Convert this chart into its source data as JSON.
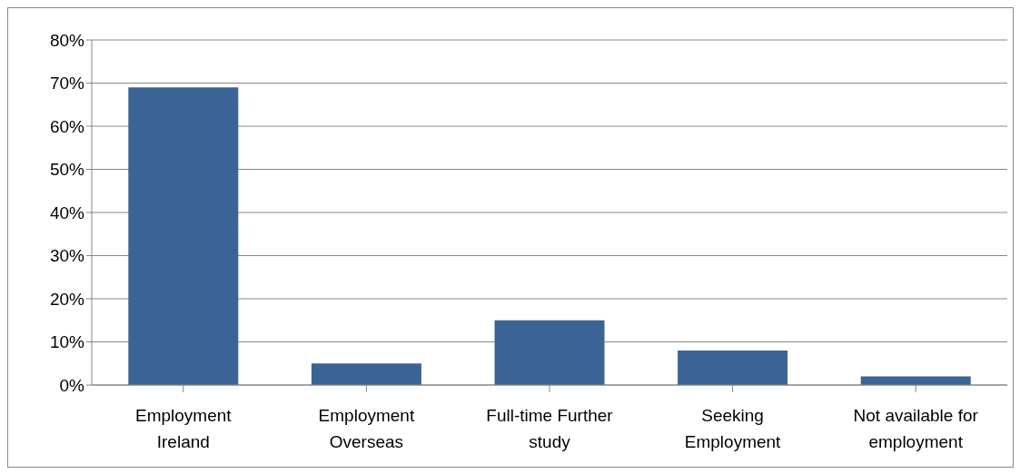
{
  "chart_data": {
    "type": "bar",
    "categories": [
      "Employment Ireland",
      "Employment Overseas",
      "Full-time Further study",
      "Seeking Employment",
      "Not available for employment"
    ],
    "values": [
      69,
      5,
      15,
      8,
      2
    ],
    "color": "#3a6495",
    "ylim": [
      0,
      80
    ],
    "yticks": [
      {
        "value": 0,
        "label": "0%"
      },
      {
        "value": 10,
        "label": "10%"
      },
      {
        "value": 20,
        "label": "20%"
      },
      {
        "value": 30,
        "label": "30%"
      },
      {
        "value": 40,
        "label": "40%"
      },
      {
        "value": 50,
        "label": "50%"
      },
      {
        "value": 60,
        "label": "60%"
      },
      {
        "value": 70,
        "label": "70%"
      },
      {
        "value": 80,
        "label": "80%"
      }
    ],
    "grid": "y"
  }
}
